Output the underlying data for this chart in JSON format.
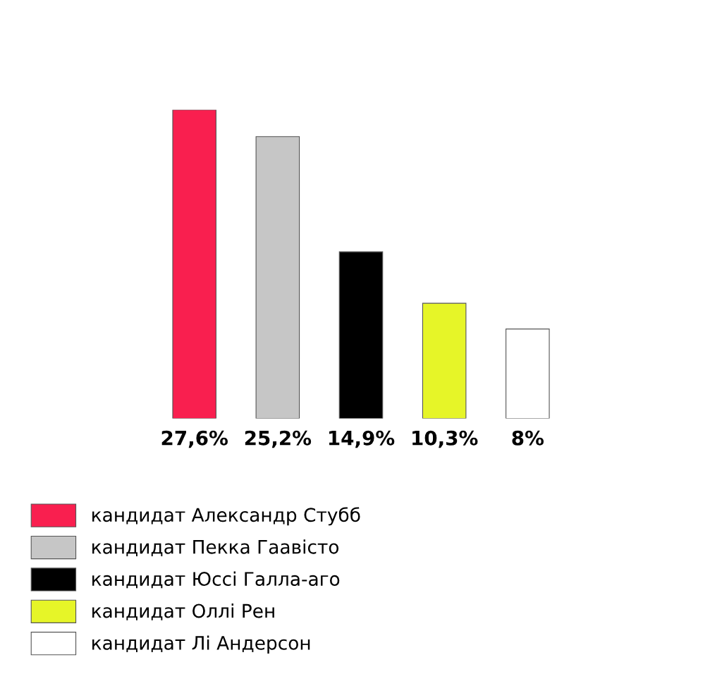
{
  "chart_data": {
    "type": "bar",
    "stacked": true,
    "categories": [
      null,
      null,
      null,
      null,
      null
    ],
    "series": [
      {
        "name": "кандидат Александр Стубб",
        "color": "#f91f4f",
        "values": [
          27.6,
          0,
          0,
          0,
          0
        ],
        "value_labels": [
          "27,6%",
          null,
          null,
          null,
          null
        ]
      },
      {
        "name": "кандидат Пекка Гаавісто",
        "color": "#c6c6c6",
        "values": [
          0,
          25.2,
          0,
          0,
          0
        ],
        "value_labels": [
          null,
          "25,2%",
          null,
          null,
          null
        ]
      },
      {
        "name": "кандидат Юссі Галла-аго",
        "color": "#000000",
        "values": [
          0,
          0,
          14.9,
          0,
          0
        ],
        "value_labels": [
          null,
          null,
          "14,9%",
          null,
          null
        ]
      },
      {
        "name": "кандидат Оллі Рен",
        "color": "#e6f528",
        "values": [
          0,
          0,
          0,
          10.3,
          0
        ],
        "value_labels": [
          null,
          null,
          null,
          "10,3%",
          null
        ]
      },
      {
        "name": "кандидат Лі Андерсон",
        "color": "#ffffff",
        "values": [
          0,
          0,
          0,
          0,
          8
        ],
        "value_labels": [
          null,
          null,
          null,
          null,
          "8%"
        ]
      }
    ],
    "tick_labels": false,
    "legend": "bottom left"
  }
}
